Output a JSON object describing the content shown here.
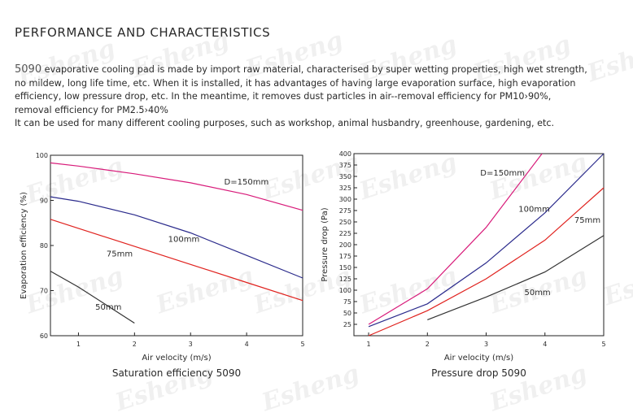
{
  "heading": "PERFORMANCE AND CHARACTERISTICS",
  "description": {
    "model": "5090",
    "line1": " evaporative cooling pad is made by import raw material, characterised by super wetting properties, high wet strength,",
    "line2": "no mildew, long life time, etc. When it is installed, it has advantages of having large evaporation surface, high evaporation",
    "line3": "efficiency, low pressure drop, etc. In the meantime, it removes dust particles in air--removal efficiency for PM10›90%,",
    "line4": "removal efficiency for PM2.5›40%",
    "line5": "It can be used for many different cooling purposes, such as workshop, animal husbandry, greenhouse, gardening, etc."
  },
  "watermark_text": "Esheng",
  "chart_data": [
    {
      "type": "line",
      "caption": "Saturation efficiency 5090",
      "xlabel": "Air velocity (m/s)",
      "ylabel": "Evaporation efficiency (%)",
      "xlim": [
        0.5,
        5
      ],
      "ylim": [
        60,
        100
      ],
      "xticks": [
        1,
        2,
        3,
        4,
        5
      ],
      "yticks": [
        60,
        70,
        80,
        90,
        100
      ],
      "series": [
        {
          "name": "D=150mm",
          "color": "#d81b7a",
          "x": [
            0.5,
            1,
            2,
            3,
            4,
            5
          ],
          "y": [
            98.3,
            97.6,
            95.9,
            93.9,
            91.3,
            87.8
          ]
        },
        {
          "name": "100mm",
          "color": "#2b2b8c",
          "x": [
            0.5,
            1,
            2,
            3,
            4,
            5
          ],
          "y": [
            90.8,
            89.8,
            86.8,
            82.8,
            77.8,
            72.8
          ]
        },
        {
          "name": "75mm",
          "color": "#e0221e",
          "x": [
            0.5,
            1,
            2,
            3,
            4,
            5
          ],
          "y": [
            85.8,
            83.8,
            79.8,
            75.8,
            71.8,
            67.8
          ]
        },
        {
          "name": "50mm",
          "color": "#333333",
          "x": [
            0.5,
            1,
            2
          ],
          "y": [
            74.3,
            70.8,
            62.8
          ]
        }
      ],
      "labels": [
        {
          "text": "D=150mm",
          "x": 3.6,
          "y": 93.5
        },
        {
          "text": "100mm",
          "x": 2.6,
          "y": 80.8
        },
        {
          "text": "75mm",
          "x": 1.5,
          "y": 77.6
        },
        {
          "text": "50mm",
          "x": 1.3,
          "y": 65.8
        }
      ]
    },
    {
      "type": "line",
      "caption": "Pressure drop 5090",
      "xlabel": "Air velocity (m/s)",
      "ylabel": "Pressure drop (Pa)",
      "xlim": [
        0.75,
        5
      ],
      "ylim": [
        0,
        400
      ],
      "xticks": [
        1,
        2,
        3,
        4,
        5
      ],
      "yticks": [
        25,
        50,
        75,
        100,
        125,
        150,
        175,
        200,
        225,
        250,
        275,
        300,
        325,
        350,
        375,
        400
      ],
      "series": [
        {
          "name": "D=150mm",
          "color": "#d81b7a",
          "x": [
            1,
            2,
            3,
            3.95
          ],
          "y": [
            25,
            103,
            238,
            400
          ]
        },
        {
          "name": "100mm",
          "color": "#2b2b8c",
          "x": [
            1,
            2,
            3,
            4,
            5
          ],
          "y": [
            20,
            70,
            160,
            270,
            400
          ]
        },
        {
          "name": "75mm",
          "color": "#e0221e",
          "x": [
            1,
            2,
            3,
            4,
            5
          ],
          "y": [
            0,
            55,
            125,
            210,
            325
          ]
        },
        {
          "name": "50mm",
          "color": "#333333",
          "x": [
            2,
            3,
            4,
            5
          ],
          "y": [
            35,
            85,
            140,
            220
          ]
        }
      ],
      "labels": [
        {
          "text": "D=150mm",
          "x": 2.9,
          "y": 352
        },
        {
          "text": "100mm",
          "x": 3.55,
          "y": 272
        },
        {
          "text": "75mm",
          "x": 4.5,
          "y": 248
        },
        {
          "text": "50mm",
          "x": 3.65,
          "y": 89
        }
      ]
    }
  ]
}
